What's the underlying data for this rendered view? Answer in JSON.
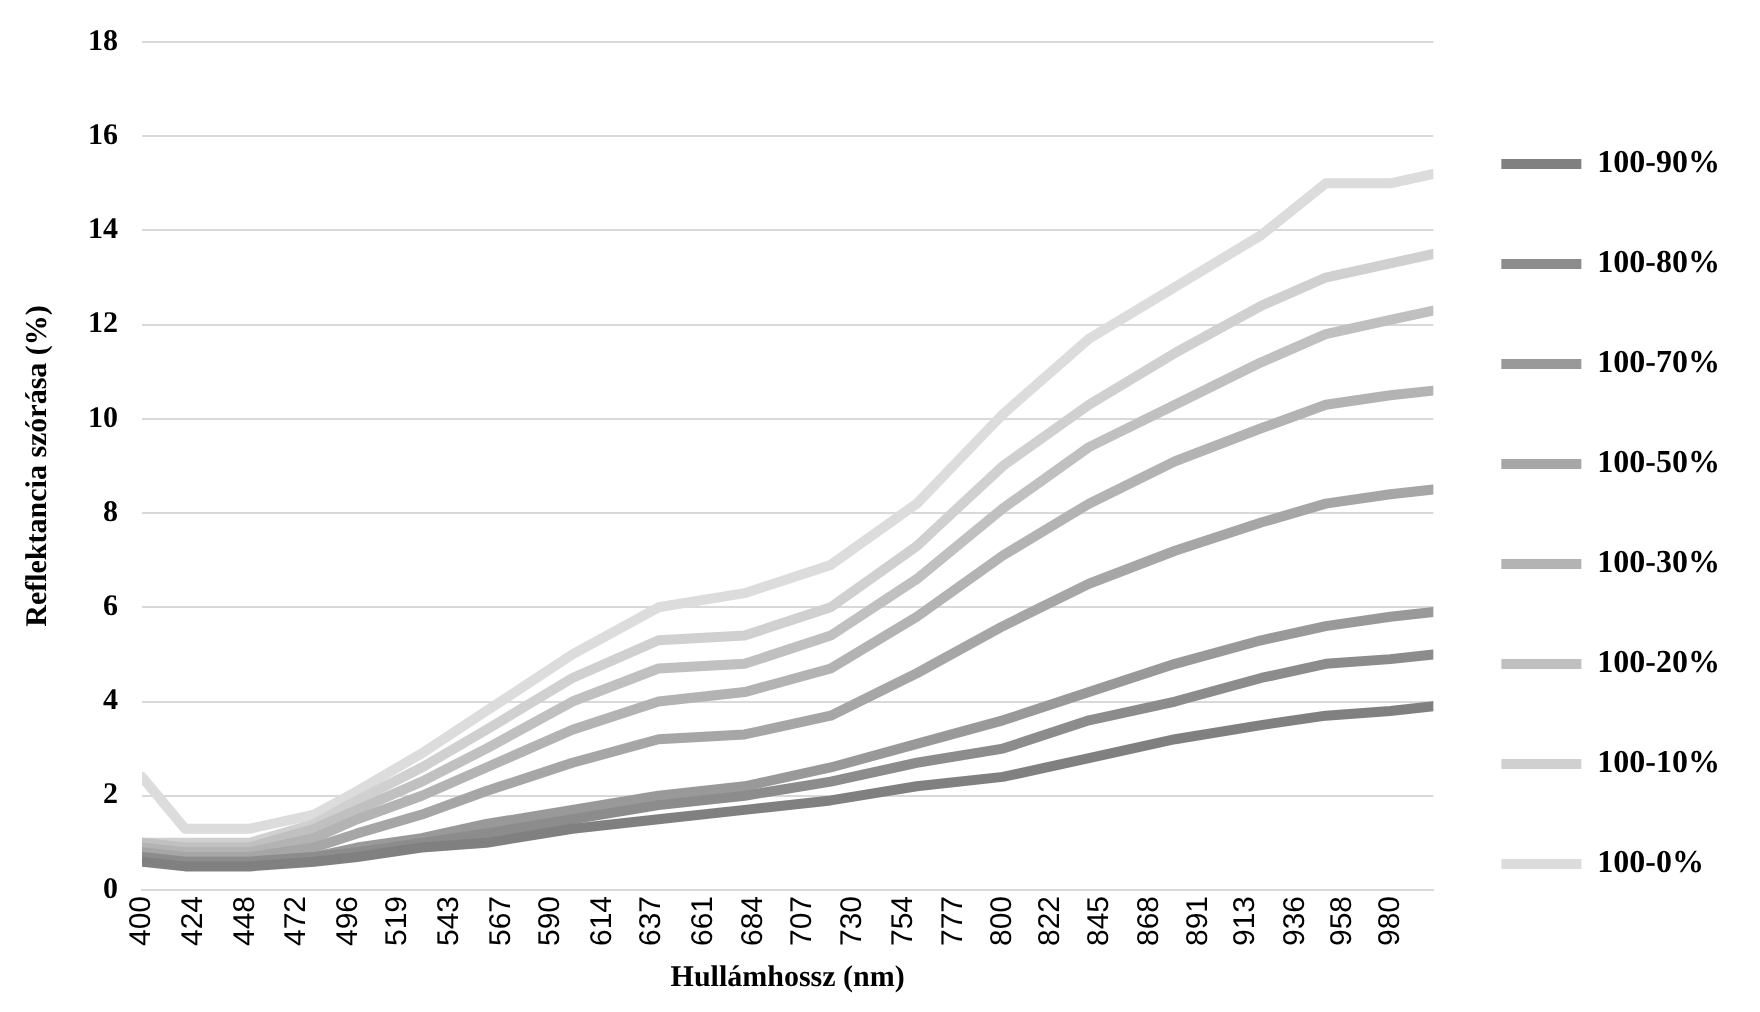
{
  "chart_data": {
    "type": "line",
    "xlabel": "Hullámhossz (nm)",
    "ylabel": "Reflektancia szórása (%)",
    "x": [
      400,
      420,
      450,
      480,
      500,
      530,
      560,
      600,
      640,
      680,
      720,
      760,
      800,
      840,
      880,
      920,
      950,
      980,
      1000
    ],
    "xlim": [
      400,
      1000
    ],
    "xticks": [
      400,
      424,
      448,
      472,
      496,
      519,
      543,
      567,
      590,
      614,
      637,
      661,
      684,
      707,
      730,
      754,
      777,
      800,
      822,
      845,
      868,
      891,
      913,
      936,
      958,
      980
    ],
    "ylim": [
      0,
      18
    ],
    "yticks": [
      0,
      2,
      4,
      6,
      8,
      10,
      12,
      14,
      16,
      18
    ],
    "grid": "y",
    "legend": "right",
    "marker": "none",
    "line_style": "solid",
    "series": [
      {
        "name": "100-90%",
        "color": "#808080",
        "values": [
          0.6,
          0.5,
          0.5,
          0.6,
          0.7,
          0.9,
          1.0,
          1.3,
          1.5,
          1.7,
          1.9,
          2.2,
          2.4,
          2.8,
          3.2,
          3.5,
          3.7,
          3.8,
          3.9
        ]
      },
      {
        "name": "100-80%",
        "color": "#8c8c8c",
        "values": [
          0.7,
          0.6,
          0.6,
          0.7,
          0.8,
          1.0,
          1.2,
          1.5,
          1.8,
          2.0,
          2.3,
          2.7,
          3.0,
          3.6,
          4.0,
          4.5,
          4.8,
          4.9,
          5.0
        ]
      },
      {
        "name": "100-70%",
        "color": "#999999",
        "values": [
          0.7,
          0.6,
          0.6,
          0.7,
          0.9,
          1.1,
          1.4,
          1.7,
          2.0,
          2.2,
          2.6,
          3.1,
          3.6,
          4.2,
          4.8,
          5.3,
          5.6,
          5.8,
          5.9
        ]
      },
      {
        "name": "100-50%",
        "color": "#a6a6a6",
        "values": [
          0.8,
          0.7,
          0.7,
          0.9,
          1.2,
          1.6,
          2.1,
          2.7,
          3.2,
          3.3,
          3.7,
          4.6,
          5.6,
          6.5,
          7.2,
          7.8,
          8.2,
          8.4,
          8.5
        ]
      },
      {
        "name": "100-30%",
        "color": "#b3b3b3",
        "values": [
          0.9,
          0.8,
          0.8,
          1.1,
          1.5,
          2.0,
          2.6,
          3.4,
          4.0,
          4.2,
          4.7,
          5.8,
          7.1,
          8.2,
          9.1,
          9.8,
          10.3,
          10.5,
          10.6
        ]
      },
      {
        "name": "100-20%",
        "color": "#c0c0c0",
        "values": [
          1.0,
          0.9,
          0.9,
          1.3,
          1.7,
          2.3,
          3.0,
          4.0,
          4.7,
          4.8,
          5.4,
          6.6,
          8.1,
          9.4,
          10.3,
          11.2,
          11.8,
          12.1,
          12.3
        ]
      },
      {
        "name": "100-10%",
        "color": "#d0d0d0",
        "values": [
          1.0,
          1.0,
          1.0,
          1.4,
          1.9,
          2.6,
          3.4,
          4.5,
          5.3,
          5.4,
          6.0,
          7.3,
          9.0,
          10.3,
          11.4,
          12.4,
          13.0,
          13.3,
          13.5
        ]
      },
      {
        "name": "100-0%",
        "color": "#dcdcdc",
        "values": [
          2.4,
          1.3,
          1.3,
          1.6,
          2.1,
          2.9,
          3.8,
          5.0,
          6.0,
          6.3,
          6.9,
          8.2,
          10.1,
          11.7,
          12.8,
          13.9,
          15.0,
          15.0,
          15.2
        ]
      }
    ]
  }
}
